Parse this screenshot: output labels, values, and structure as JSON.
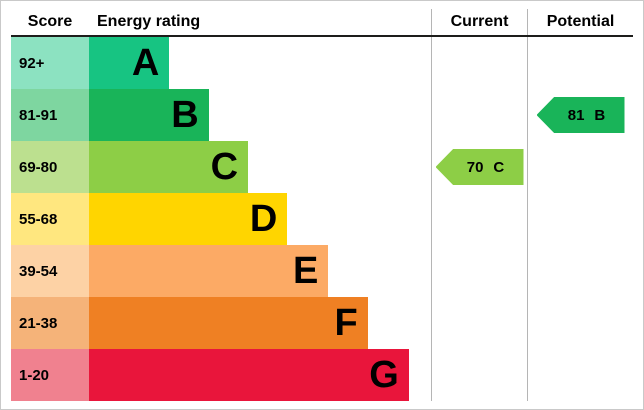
{
  "header": {
    "score": "Score",
    "energy_rating": "Energy rating",
    "current": "Current",
    "potential": "Potential"
  },
  "chart_data": {
    "type": "bar",
    "orientation": "horizontal",
    "bands": [
      {
        "score_range": "92+",
        "letter": "A",
        "color": "#17c482",
        "tint": "#8ce2c1",
        "width_pct": 23.5
      },
      {
        "score_range": "81-91",
        "letter": "B",
        "color": "#19b459",
        "tint": "#7ed6a0",
        "width_pct": 35
      },
      {
        "score_range": "69-80",
        "letter": "C",
        "color": "#8dce46",
        "tint": "#bce08f",
        "width_pct": 46.5
      },
      {
        "score_range": "55-68",
        "letter": "D",
        "color": "#ffd500",
        "tint": "#ffe77f",
        "width_pct": 58
      },
      {
        "score_range": "39-54",
        "letter": "E",
        "color": "#fcaa65",
        "tint": "#fdd2a5",
        "width_pct": 70
      },
      {
        "score_range": "21-38",
        "letter": "F",
        "color": "#ef8023",
        "tint": "#f5b379",
        "width_pct": 81.5
      },
      {
        "score_range": "1-20",
        "letter": "G",
        "color": "#e9153b",
        "tint": "#f0818f",
        "width_pct": 93.5
      }
    ],
    "current": {
      "value": 70,
      "band": "C",
      "color": "#8dce46",
      "row_index": 2
    },
    "potential": {
      "value": 81,
      "band": "B",
      "color": "#19b459",
      "row_index": 1
    }
  }
}
